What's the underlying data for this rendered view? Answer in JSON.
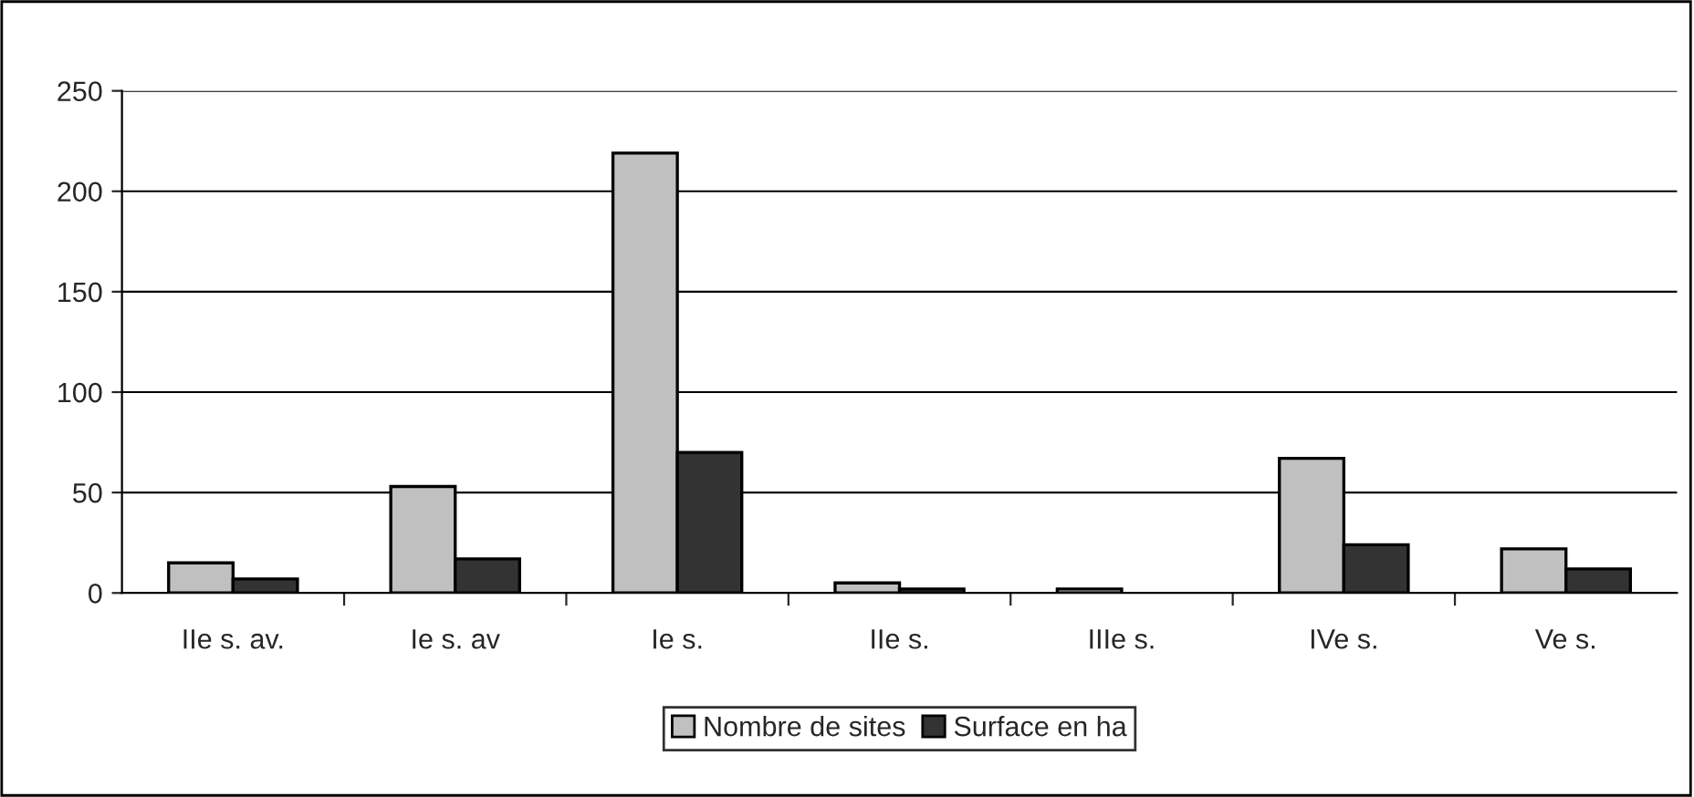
{
  "chart_data": {
    "type": "bar",
    "categories": [
      "IIe s. av.",
      "Ie s. av",
      "Ie s.",
      "IIe s.",
      "IIIe s.",
      "IVe s.",
      "Ve s."
    ],
    "series": [
      {
        "name": "Nombre de sites",
        "color": "#c0c0c0",
        "values": [
          15,
          53,
          219,
          5,
          2,
          67,
          22
        ]
      },
      {
        "name": "Surface en ha",
        "color": "#333333",
        "values": [
          7,
          17,
          70,
          2,
          null,
          24,
          12
        ]
      }
    ],
    "ylim": [
      0,
      250
    ],
    "yticks": [
      0,
      50,
      100,
      150,
      200,
      250
    ],
    "grid": "y",
    "legend": "bottom"
  }
}
